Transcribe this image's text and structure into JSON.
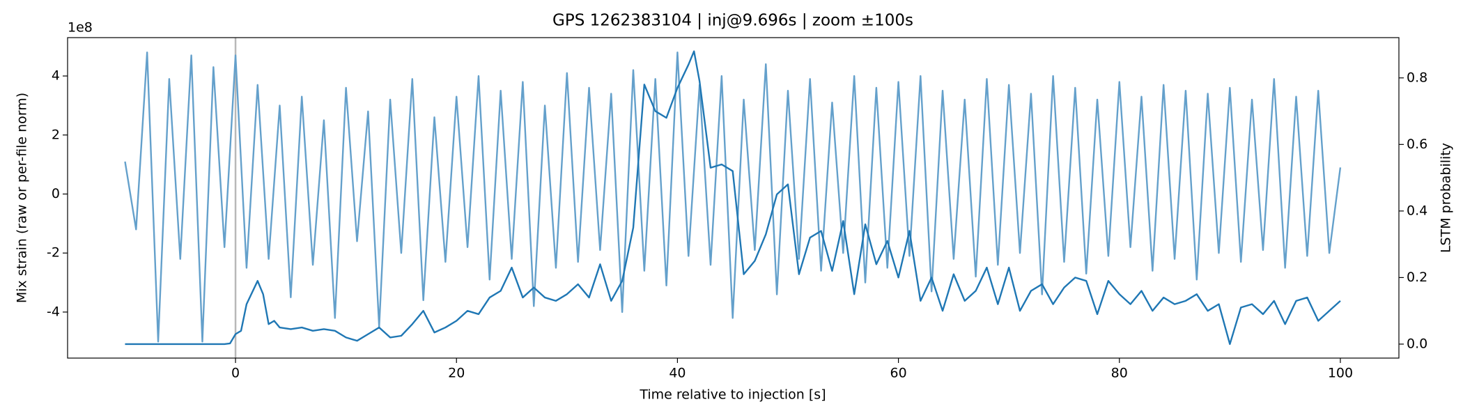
{
  "chart_data": {
    "type": "line",
    "title": "GPS 1262383104 | inj@9.696s | zoom ±100s",
    "x_label": "Time relative to injection [s]",
    "y_label": "Mix strain (raw or per-file norm)",
    "y_offset_label": "1e8",
    "y2_label": "LSTM probability",
    "xlim": [
      -15.2,
      105.3
    ],
    "xticks": [
      0,
      20,
      40,
      60,
      80,
      100
    ],
    "ylim": [
      -5.56,
      5.3
    ],
    "yticks": [
      -4,
      -2,
      0,
      2,
      4
    ],
    "y2lim": [
      -0.042,
      0.921
    ],
    "y2ticks": [
      {
        "value": 0,
        "label": "0.0"
      },
      {
        "value": 0.2,
        "label": "0.2"
      },
      {
        "value": 0.4,
        "label": "0.4"
      },
      {
        "value": 0.6,
        "label": "0.6"
      },
      {
        "value": 0.8,
        "label": "0.8"
      }
    ],
    "vline_x": 0,
    "series": [
      {
        "color": "#64a0cb",
        "x": [
          -10,
          -9,
          -8,
          -7,
          -6,
          -5,
          -4,
          -3,
          -2,
          -1,
          0,
          1,
          2,
          3,
          4,
          5,
          6,
          7,
          8,
          9,
          10,
          11,
          12,
          13,
          14,
          15,
          16,
          17,
          18,
          19,
          20,
          21,
          22,
          23,
          24,
          25,
          26,
          27,
          28,
          29,
          30,
          31,
          32,
          33,
          34,
          35,
          36,
          37,
          38,
          39,
          40,
          41,
          42,
          43,
          44,
          45,
          46,
          47,
          48,
          49,
          50,
          51,
          52,
          53,
          54,
          55,
          56,
          57,
          58,
          59,
          60,
          61,
          62,
          63,
          64,
          65,
          66,
          67,
          68,
          69,
          70,
          71,
          72,
          73,
          74,
          75,
          76,
          77,
          78,
          79,
          80,
          81,
          82,
          83,
          84,
          85,
          86,
          87,
          88,
          89,
          90,
          91,
          92,
          93,
          94,
          95,
          96,
          97,
          98,
          99,
          100
        ],
        "values": [
          1.1,
          -1.2,
          4.8,
          -5.0,
          3.9,
          -2.2,
          4.7,
          -5.0,
          4.3,
          -1.8,
          4.7,
          -2.5,
          3.7,
          -2.2,
          3.0,
          -3.5,
          3.3,
          -2.4,
          2.5,
          -4.2,
          3.6,
          -1.6,
          2.8,
          -4.5,
          3.2,
          -2.0,
          3.9,
          -3.6,
          2.6,
          -2.3,
          3.3,
          -1.8,
          4.0,
          -2.9,
          3.5,
          -2.2,
          3.8,
          -3.8,
          3.0,
          -2.5,
          4.1,
          -2.3,
          3.6,
          -1.9,
          3.4,
          -4.0,
          4.2,
          -2.6,
          3.9,
          -3.1,
          4.8,
          -2.1,
          3.7,
          -2.4,
          4.0,
          -4.2,
          3.2,
          -1.9,
          4.4,
          -3.4,
          3.5,
          -2.2,
          3.9,
          -2.6,
          3.1,
          -2.0,
          4.0,
          -3.0,
          3.6,
          -2.5,
          3.8,
          -2.1,
          4.0,
          -3.3,
          3.5,
          -2.2,
          3.2,
          -2.8,
          3.9,
          -2.4,
          3.7,
          -2.0,
          3.4,
          -3.4,
          4.0,
          -2.3,
          3.6,
          -2.7,
          3.2,
          -2.1,
          3.8,
          -1.8,
          3.3,
          -2.6,
          3.7,
          -2.2,
          3.5,
          -2.9,
          3.4,
          -2.0,
          3.6,
          -2.3,
          3.2,
          -1.9,
          3.9,
          -2.5,
          3.3,
          -2.1,
          3.5,
          -2.0,
          0.9
        ]
      },
      {
        "color": "#1f77b4",
        "axis": "y2",
        "x": [
          -10,
          -1,
          -0.5,
          0,
          0.5,
          1,
          2,
          2.5,
          3,
          3.5,
          4,
          5,
          6,
          7,
          8,
          9,
          10,
          11,
          12,
          13,
          14,
          15,
          16,
          17,
          18,
          19,
          20,
          21,
          22,
          23,
          24,
          25,
          26,
          27,
          28,
          29,
          30,
          31,
          32,
          33,
          34,
          35,
          36,
          37,
          38,
          39,
          40,
          41,
          41.5,
          42,
          43,
          44,
          45,
          46,
          47,
          48,
          49,
          50,
          51,
          52,
          53,
          54,
          55,
          56,
          57,
          58,
          59,
          60,
          61,
          62,
          63,
          64,
          65,
          66,
          67,
          68,
          69,
          70,
          71,
          72,
          73,
          74,
          75,
          76,
          77,
          78,
          79,
          80,
          81,
          82,
          83,
          84,
          85,
          86,
          87,
          88,
          89,
          90,
          91,
          92,
          93,
          94,
          95,
          96,
          97,
          98,
          99,
          100
        ],
        "values": [
          0,
          0,
          0.002,
          0.03,
          0.04,
          0.12,
          0.19,
          0.15,
          0.06,
          0.07,
          0.05,
          0.045,
          0.05,
          0.04,
          0.045,
          0.04,
          0.02,
          0.01,
          0.03,
          0.05,
          0.02,
          0.025,
          0.06,
          0.1,
          0.035,
          0.05,
          0.07,
          0.1,
          0.09,
          0.14,
          0.16,
          0.23,
          0.14,
          0.17,
          0.14,
          0.13,
          0.15,
          0.18,
          0.14,
          0.24,
          0.13,
          0.19,
          0.35,
          0.78,
          0.7,
          0.68,
          0.77,
          0.84,
          0.88,
          0.79,
          0.53,
          0.54,
          0.52,
          0.21,
          0.25,
          0.33,
          0.45,
          0.48,
          0.21,
          0.32,
          0.34,
          0.22,
          0.37,
          0.15,
          0.36,
          0.24,
          0.31,
          0.2,
          0.34,
          0.13,
          0.2,
          0.1,
          0.21,
          0.13,
          0.16,
          0.23,
          0.12,
          0.23,
          0.1,
          0.16,
          0.18,
          0.12,
          0.17,
          0.2,
          0.19,
          0.09,
          0.19,
          0.15,
          0.12,
          0.16,
          0.1,
          0.14,
          0.12,
          0.13,
          0.15,
          0.1,
          0.12,
          0,
          0.11,
          0.12,
          0.09,
          0.13,
          0.06,
          0.13,
          0.14,
          0.07,
          0.1,
          0.13
        ]
      }
    ]
  }
}
